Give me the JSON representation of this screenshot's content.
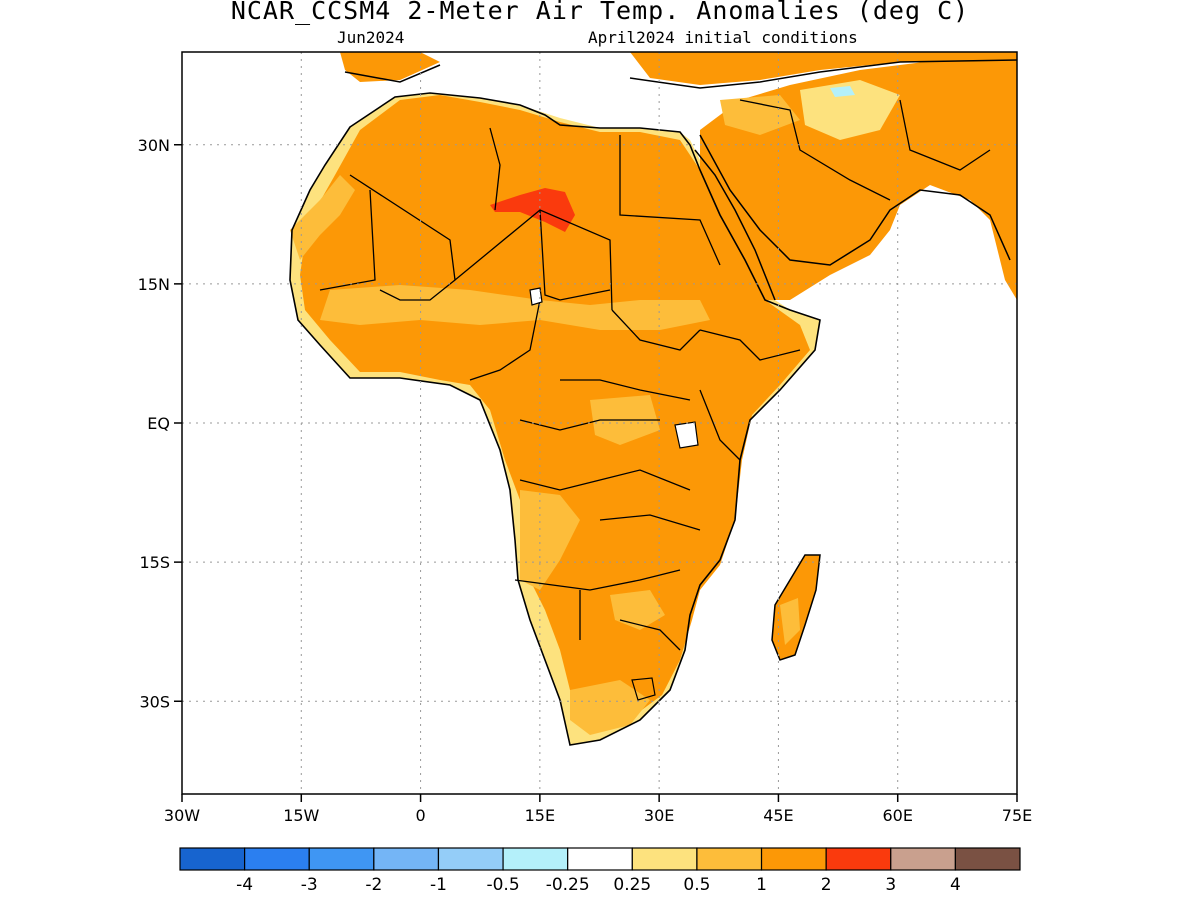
{
  "header": {
    "title": "NCAR_CCSM4 2-Meter Air Temp. Anomalies (deg C)",
    "valid_month": "Jun2024",
    "init_label": "April2024 initial conditions"
  },
  "map": {
    "region": "Africa",
    "lat_ticks": [
      "30N",
      "15N",
      "EQ",
      "15S",
      "30S"
    ],
    "lon_ticks": [
      "30W",
      "15W",
      "0",
      "15E",
      "30E",
      "45E",
      "60E",
      "75E"
    ],
    "lat_range": [
      -40,
      40
    ],
    "lon_range": [
      -30,
      75
    ],
    "gridlines": "dotted"
  },
  "colorbar": {
    "colors": [
      "#1764cf",
      "#2b7ff0",
      "#3f96f3",
      "#74b5f6",
      "#94cdf8",
      "#b4f0fa",
      "#ffffff",
      "#fde27e",
      "#fdbd3a",
      "#fc9806",
      "#fa3a0d",
      "#c9a08e",
      "#7a5143"
    ],
    "labels": [
      "-4",
      "-3",
      "-2",
      "-1",
      "-0.5",
      "-0.25",
      "0.25",
      "0.5",
      "1",
      "2",
      "3",
      "4"
    ]
  }
}
